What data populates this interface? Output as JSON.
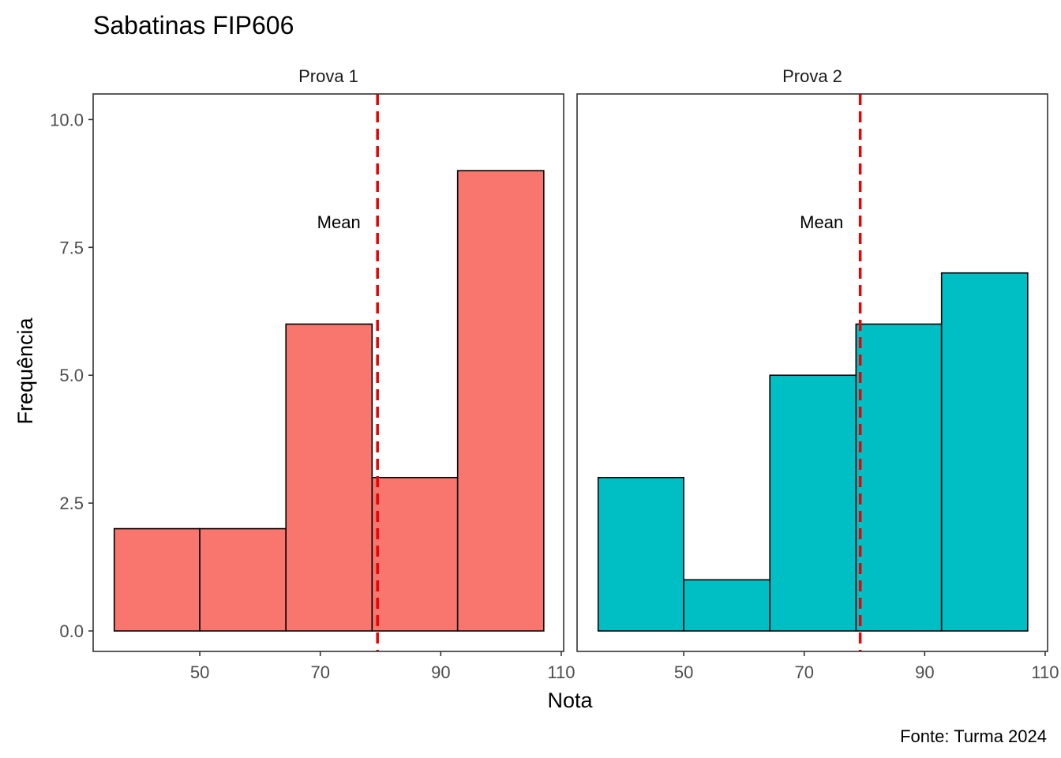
{
  "chart_data": {
    "type": "bar",
    "title": "Sabatinas FIP606",
    "xlabel": "Nota",
    "ylabel": "Frequência",
    "caption": "Fonte: Turma 2024",
    "ylim": [
      -0.4,
      10.5
    ],
    "y_ticks": [
      0,
      2.5,
      5,
      7.5,
      10
    ],
    "y_tick_labels": [
      "0.0",
      "2.5",
      "5.0",
      "7.5",
      "10.0"
    ],
    "xlim": [
      32.3,
      110.4
    ],
    "x_ticks": [
      50,
      70,
      90,
      110
    ],
    "x_tick_labels": [
      "50",
      "70",
      "90",
      "110"
    ],
    "grid": false,
    "legend": "none",
    "bar_outline_color": "#000000",
    "mean_line_color": "#ee0000",
    "panels": [
      {
        "strip_label": "Prova 1",
        "fill_color": "#F8766D",
        "bins": [
          {
            "x_start": 35.8,
            "x_end": 50.0,
            "count": 2
          },
          {
            "x_start": 50.0,
            "x_end": 64.3,
            "count": 2
          },
          {
            "x_start": 64.3,
            "x_end": 78.6,
            "count": 6
          },
          {
            "x_start": 78.6,
            "x_end": 92.8,
            "count": 3
          },
          {
            "x_start": 92.8,
            "x_end": 107.1,
            "count": 9
          }
        ],
        "mean": 79.5,
        "mean_label": "Mean",
        "mean_label_y": 8.0
      },
      {
        "strip_label": "Prova 2",
        "fill_color": "#00BFC4",
        "bins": [
          {
            "x_start": 35.8,
            "x_end": 50.0,
            "count": 3
          },
          {
            "x_start": 50.0,
            "x_end": 64.3,
            "count": 1
          },
          {
            "x_start": 64.3,
            "x_end": 78.6,
            "count": 5
          },
          {
            "x_start": 78.6,
            "x_end": 92.8,
            "count": 6
          },
          {
            "x_start": 92.8,
            "x_end": 107.1,
            "count": 7
          }
        ],
        "mean": 79.3,
        "mean_label": "Mean",
        "mean_label_y": 8.0
      }
    ]
  }
}
